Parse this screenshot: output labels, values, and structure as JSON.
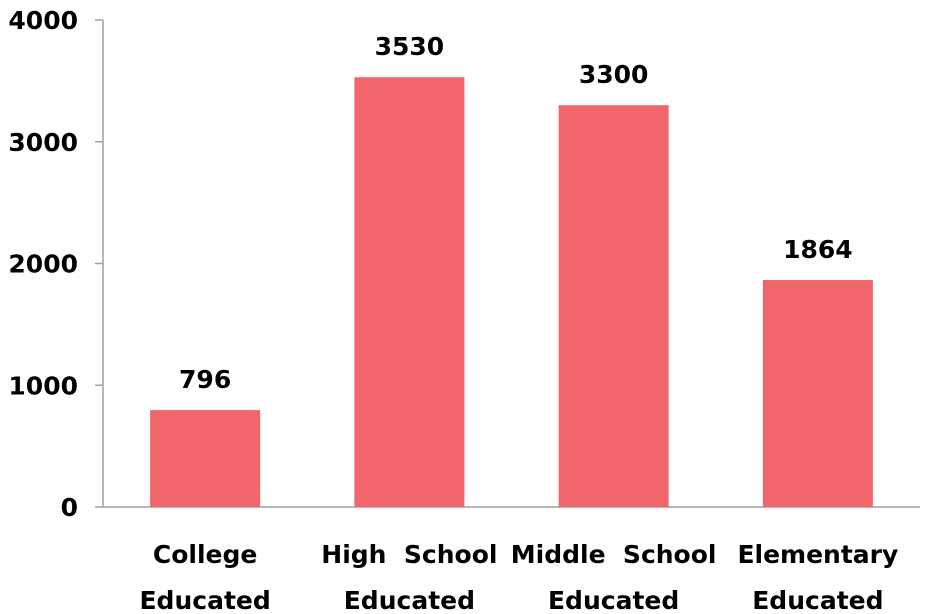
{
  "chart_data": {
    "type": "bar",
    "categories": [
      [
        "College",
        "Educated"
      ],
      [
        "High  School",
        "Educated"
      ],
      [
        "Middle  School",
        "Educated"
      ],
      [
        "Elementary",
        "Educated"
      ]
    ],
    "values": [
      796,
      3530,
      3300,
      1864
    ],
    "data_labels": [
      "796",
      "3530",
      "3300",
      "1864"
    ],
    "y_ticks": [
      0,
      1000,
      2000,
      3000,
      4000
    ],
    "ylim": [
      0,
      4000
    ],
    "title": "",
    "xlabel": "",
    "ylabel": "",
    "grid": false,
    "legend": "none",
    "bar_color": "#f0666a",
    "axis_color": "#a0a0a0"
  }
}
